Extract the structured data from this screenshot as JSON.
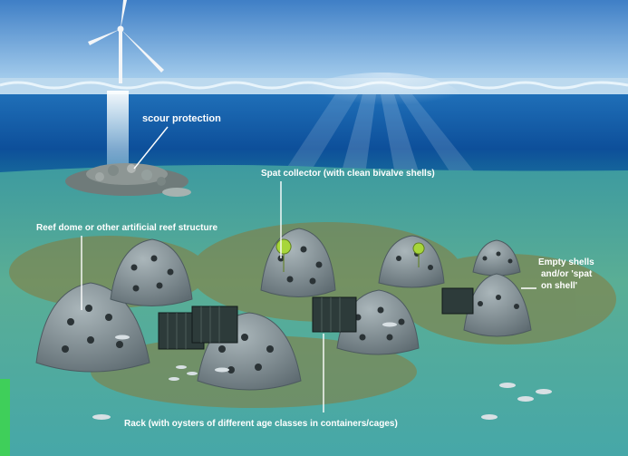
{
  "labels": {
    "scour_protection": "scour protection",
    "spat_collector": "Spat collector (with clean bivalve shells)",
    "reef_dome": "Reef dome or other artificial reef structure",
    "empty_shells_1": "Empty shells",
    "empty_shells_2": "and/or 'spat",
    "empty_shells_3": "on shell'",
    "rack": "Rack (with oysters of different age classes in containers/cages)"
  },
  "colors": {
    "sky_top": "#3f7fc6",
    "sky_bottom": "#9cc6ea",
    "water_deep": "#0d4f9a",
    "seabed": "#4fa79a",
    "dome": "#7f8d92",
    "marker": "#a7d63a",
    "edge_accent": "#3fcf5a"
  }
}
